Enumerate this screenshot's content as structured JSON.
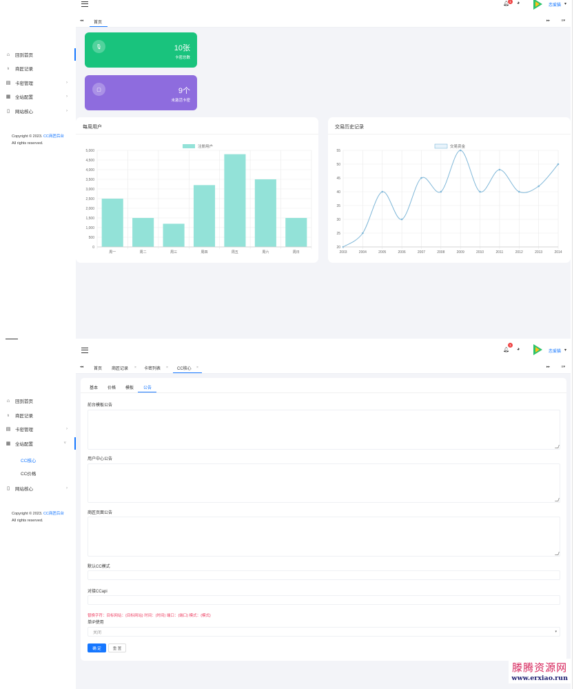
{
  "colors": {
    "primary": "#1677ff",
    "green_card": "#19c37d",
    "purple_card": "#8e6cde",
    "bar_color": "#93e2d8",
    "line_color": "#7fb7d8",
    "hint_red": "#ee4466"
  },
  "header": {
    "username": "恋爱猫",
    "bell_badge": "1"
  },
  "sidebar1": {
    "items": [
      {
        "label": "回到首页",
        "icon": "home-icon"
      },
      {
        "label": "商匠记录",
        "icon": "record-icon"
      },
      {
        "label": "卡密管理",
        "icon": "card-icon"
      },
      {
        "label": "全站配置",
        "icon": "calendar-icon"
      },
      {
        "label": "网站核心",
        "icon": "file-icon"
      }
    ],
    "copyright_prefix": "Copyright © 2023.",
    "copyright_link": "CC商匠后台",
    "rights": "All rights reserved."
  },
  "sidebar2": {
    "items": [
      {
        "label": "回到首页"
      },
      {
        "label": "商匠记录"
      },
      {
        "label": "卡密管理"
      },
      {
        "label": "全站配置"
      },
      {
        "label": "网站核心"
      }
    ],
    "sub_items": [
      "CC核心",
      "CC价格"
    ]
  },
  "tabs1": {
    "home": "首页"
  },
  "tabs2": {
    "items": [
      "首页",
      "商匠记录",
      "卡密列表",
      "CC核心"
    ]
  },
  "stats": {
    "card1_value": "10张",
    "card1_label": "卡密总数",
    "card2_value": "9个",
    "card2_label": "未激活卡密"
  },
  "bar_card": {
    "title": "每周用户"
  },
  "line_card": {
    "title": "交易历史记录"
  },
  "chart_data": [
    {
      "type": "bar",
      "legend": "注册用户",
      "categories": [
        "周一",
        "周二",
        "周三",
        "周四",
        "周五",
        "周六",
        "周日"
      ],
      "values": [
        2500,
        1500,
        1200,
        3200,
        4800,
        3500,
        1500
      ],
      "ylim": [
        0,
        5000
      ],
      "yticks": [
        "0",
        "500",
        "1,000",
        "1,500",
        "2,000",
        "2,500",
        "3,000",
        "3,500",
        "4,000",
        "4,500",
        "5,000"
      ],
      "grid": true,
      "legend_position": "top-center"
    },
    {
      "type": "line",
      "legend": "交易资金",
      "x": [
        "2003",
        "2004",
        "2005",
        "2006",
        "2007",
        "2008",
        "2009",
        "2010",
        "2011",
        "2012",
        "2013",
        "2014"
      ],
      "values": [
        20,
        25,
        40,
        30,
        45,
        40,
        55,
        40,
        48,
        40,
        42,
        50
      ],
      "ylim": [
        20,
        55
      ],
      "yticks": [
        "20",
        "25",
        "30",
        "35",
        "40",
        "45",
        "50",
        "55"
      ],
      "grid": true,
      "legend_position": "top-center"
    }
  ],
  "form": {
    "tabs": [
      "基本",
      "价格",
      "模板",
      "公告"
    ],
    "label_front": "前台模板公告",
    "label_user": "用户中心公告",
    "label_page": "商匠页面公告",
    "label_default_cc": "默认CC模式",
    "label_api": "对接CCapi",
    "hint": "替换字符：目标网站：{目标网站} 时间：{时间} 端口：{端口} 模式：{模式}",
    "label_single_ip": "单IP使用",
    "single_ip_value": "关闭",
    "submit": "确 定",
    "reset": "重 置"
  },
  "watermark": {
    "line1": "滕腾资源网",
    "line2": "www.erxiao.run"
  }
}
